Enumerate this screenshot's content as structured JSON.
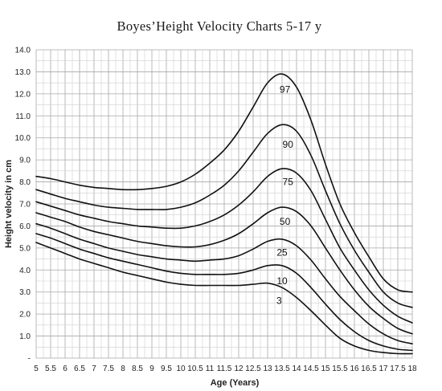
{
  "chart_data": {
    "type": "line",
    "title": "Boyes’Height Velocity Charts 5-17 y",
    "xlabel": "Age (Years)",
    "ylabel": "Height velocity in cm",
    "xlim": [
      5,
      18
    ],
    "ylim": [
      0,
      14
    ],
    "grid": true,
    "x_tick_labels": [
      "5",
      "5.5",
      "6",
      "6.5",
      "7",
      "7.5",
      "8",
      "8.5",
      "9",
      "9.5",
      "10",
      "10.5",
      "11",
      "11.5",
      "12",
      "12.5",
      "13",
      "13.5",
      "14",
      "14.5",
      "15",
      "15.5",
      "16",
      "16.5",
      "17",
      "17.5",
      "18"
    ],
    "y_tick_labels": [
      "-",
      "1.0",
      "2.0",
      "3.0",
      "4.0",
      "5.0",
      "6.0",
      "7.0",
      "8.0",
      "9.0",
      "10.0",
      "11.0",
      "12.0",
      "13.0",
      "14.0"
    ],
    "x": [
      5,
      5.5,
      6,
      6.5,
      7,
      7.5,
      8,
      8.5,
      9,
      9.5,
      10,
      10.5,
      11,
      11.5,
      12,
      12.5,
      13,
      13.5,
      14,
      14.5,
      15,
      15.5,
      16,
      16.5,
      17,
      17.5,
      18
    ],
    "series": [
      {
        "name": "97",
        "label_at": [
          13.6,
          12.2
        ],
        "values": [
          8.25,
          8.15,
          8.0,
          7.85,
          7.75,
          7.7,
          7.65,
          7.65,
          7.7,
          7.8,
          8.0,
          8.35,
          8.85,
          9.45,
          10.3,
          11.4,
          12.5,
          12.9,
          12.3,
          10.8,
          8.8,
          7.0,
          5.7,
          4.6,
          3.6,
          3.1,
          3.0
        ]
      },
      {
        "name": "90",
        "label_at": [
          13.7,
          9.7
        ],
        "values": [
          7.65,
          7.45,
          7.25,
          7.1,
          6.95,
          6.85,
          6.8,
          6.75,
          6.75,
          6.75,
          6.85,
          7.05,
          7.4,
          7.85,
          8.5,
          9.35,
          10.2,
          10.6,
          10.3,
          9.2,
          7.6,
          6.1,
          4.9,
          3.9,
          3.0,
          2.5,
          2.3
        ]
      },
      {
        "name": "75",
        "label_at": [
          13.7,
          8.0
        ],
        "values": [
          7.1,
          6.9,
          6.7,
          6.5,
          6.35,
          6.2,
          6.1,
          6.0,
          5.95,
          5.9,
          5.9,
          6.0,
          6.2,
          6.5,
          6.95,
          7.55,
          8.25,
          8.6,
          8.4,
          7.6,
          6.3,
          5.0,
          4.0,
          3.1,
          2.4,
          1.9,
          1.6
        ]
      },
      {
        "name": "50",
        "label_at": [
          13.6,
          6.2
        ],
        "values": [
          6.6,
          6.4,
          6.2,
          5.95,
          5.75,
          5.6,
          5.45,
          5.3,
          5.2,
          5.1,
          5.05,
          5.05,
          5.15,
          5.35,
          5.65,
          6.1,
          6.6,
          6.85,
          6.65,
          6.0,
          5.0,
          4.0,
          3.1,
          2.35,
          1.8,
          1.35,
          1.1
        ]
      },
      {
        "name": "25",
        "label_at": [
          13.5,
          4.8
        ],
        "values": [
          6.1,
          5.9,
          5.65,
          5.4,
          5.2,
          5.0,
          4.85,
          4.7,
          4.6,
          4.5,
          4.45,
          4.4,
          4.45,
          4.5,
          4.65,
          4.95,
          5.3,
          5.4,
          5.1,
          4.45,
          3.6,
          2.8,
          2.15,
          1.55,
          1.1,
          0.8,
          0.65
        ]
      },
      {
        "name": "10",
        "label_at": [
          13.5,
          3.5
        ],
        "values": [
          5.65,
          5.45,
          5.2,
          4.95,
          4.75,
          4.55,
          4.4,
          4.25,
          4.1,
          3.95,
          3.85,
          3.8,
          3.8,
          3.8,
          3.85,
          4.0,
          4.2,
          4.2,
          3.85,
          3.2,
          2.45,
          1.75,
          1.2,
          0.8,
          0.55,
          0.4,
          0.35
        ]
      },
      {
        "name": "3",
        "label_at": [
          13.4,
          2.6
        ],
        "values": [
          5.25,
          5.0,
          4.75,
          4.5,
          4.3,
          4.1,
          3.9,
          3.75,
          3.6,
          3.45,
          3.35,
          3.3,
          3.3,
          3.3,
          3.3,
          3.35,
          3.4,
          3.2,
          2.75,
          2.15,
          1.5,
          0.9,
          0.55,
          0.35,
          0.25,
          0.2,
          0.2
        ]
      }
    ]
  }
}
